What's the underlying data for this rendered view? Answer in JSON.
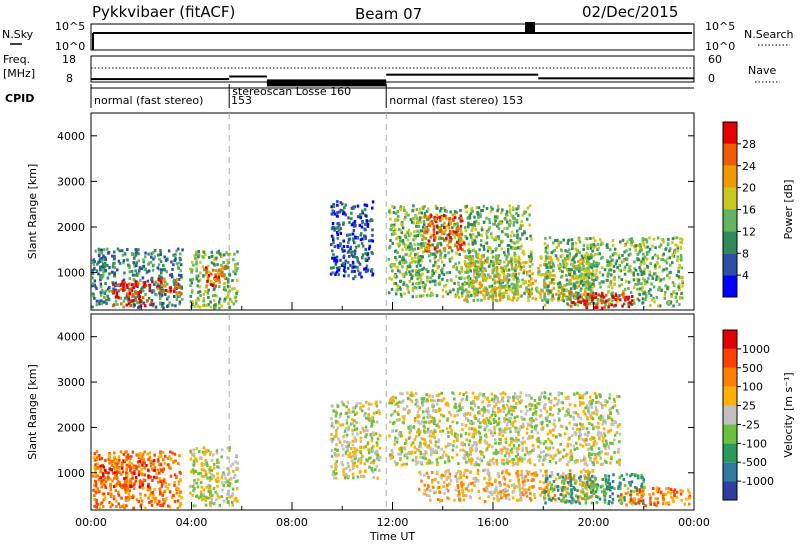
{
  "header": {
    "station": "Pykkvibaer (fitACF)",
    "beam": "Beam 07",
    "date": "02/Dec/2015"
  },
  "left_labels": {
    "nsky": "N.Sky",
    "nsky_top": "10^5",
    "nsky_bottom": "10^0",
    "freq": "Freq.",
    "freq_unit": "[MHz]",
    "freq_top": "18",
    "freq_bottom": "8",
    "cpid": "CPID"
  },
  "right_labels": {
    "nsearch": "N.Search",
    "nsearch_top": "10^5",
    "nsearch_bottom": "10^0",
    "nave": "Nave",
    "nave_top": "60",
    "nave_bottom": "0"
  },
  "cpid_segments": [
    {
      "label": "normal (fast stereo)",
      "id": "153",
      "start_hour": 0,
      "end_hour": 5.5
    },
    {
      "label": "stereoscan Losse 160",
      "id": "",
      "start_hour": 5.5,
      "end_hour": 11.75
    },
    {
      "label": "normal (fast stereo) 153",
      "id": "",
      "start_hour": 11.75,
      "end_hour": 24
    }
  ],
  "frequency_segments": [
    {
      "start_hour": 0,
      "end_hour": 5.5,
      "freq_mhz": 9.5
    },
    {
      "start_hour": 5.5,
      "end_hour": 7.0,
      "freq_mhz": 10.5
    },
    {
      "start_hour": 7.0,
      "end_hour": 11.75,
      "freq_mhz": 9.0
    },
    {
      "start_hour": 11.75,
      "end_hour": 17.8,
      "freq_mhz": 11.2
    },
    {
      "start_hour": 17.8,
      "end_hour": 24,
      "freq_mhz": 9.8
    }
  ],
  "chart_data": [
    {
      "type": "heatmap",
      "name": "power",
      "ylabel": "Slant Range [km]",
      "xlim_hours": [
        0,
        24
      ],
      "ylim": [
        180,
        4500
      ],
      "y_ticks": [
        1000,
        2000,
        3000,
        4000
      ],
      "colorbar_label": "Power [dB]",
      "colorbar_ticks": [
        "4",
        "8",
        "12",
        "16",
        "20",
        "24",
        "28"
      ],
      "colorbar_colors": [
        "#0000ff",
        "#2c4fa6",
        "#2f8a58",
        "#62b560",
        "#c8c820",
        "#ef9a00",
        "#ee5c00",
        "#e60000"
      ],
      "regions": [
        {
          "t0": 0.0,
          "t1": 3.6,
          "r0": 250,
          "r1": 1550,
          "level": 2
        },
        {
          "t0": 0.8,
          "t1": 2.4,
          "r0": 300,
          "r1": 850,
          "level": 7
        },
        {
          "t0": 2.6,
          "t1": 3.6,
          "r0": 550,
          "r1": 900,
          "level": 6
        },
        {
          "t0": 3.9,
          "t1": 5.8,
          "r0": 250,
          "r1": 1500,
          "level": 3
        },
        {
          "t0": 4.5,
          "t1": 5.3,
          "r0": 700,
          "r1": 1200,
          "level": 6
        },
        {
          "t0": 9.5,
          "t1": 11.2,
          "r0": 900,
          "r1": 2600,
          "level": 1
        },
        {
          "t0": 11.8,
          "t1": 17.5,
          "r0": 500,
          "r1": 2500,
          "level": 3
        },
        {
          "t0": 13.2,
          "t1": 14.8,
          "r0": 1500,
          "r1": 2300,
          "level": 6
        },
        {
          "t0": 14.5,
          "t1": 20.0,
          "r0": 400,
          "r1": 1400,
          "level": 4
        },
        {
          "t0": 18.0,
          "t1": 23.5,
          "r0": 300,
          "r1": 1800,
          "level": 3
        },
        {
          "t0": 19.0,
          "t1": 21.5,
          "r0": 250,
          "r1": 600,
          "level": 7
        }
      ]
    },
    {
      "type": "heatmap",
      "name": "velocity",
      "ylabel": "Slant Range [km]",
      "xlabel": "Time UT",
      "xlim_hours": [
        0,
        24
      ],
      "ylim": [
        180,
        4500
      ],
      "y_ticks": [
        1000,
        2000,
        3000,
        4000
      ],
      "x_ticks": [
        "00:00",
        "04:00",
        "08:00",
        "12:00",
        "16:00",
        "20:00",
        "00:00"
      ],
      "colorbar_label": "Velocity [m s⁻¹]",
      "colorbar_ticks": [
        "1000",
        "500",
        "100",
        "25",
        "-25",
        "-100",
        "-500",
        "-1000"
      ],
      "colorbar_colors": [
        "#2c3fa0",
        "#2f7a9f",
        "#2a9a5a",
        "#6cc040",
        "#c0c0c0",
        "#ffb000",
        "#ff8000",
        "#ff4000",
        "#e00000"
      ],
      "regions": [
        {
          "t0": 0.0,
          "t1": 3.6,
          "r0": 250,
          "r1": 1500,
          "level": 6
        },
        {
          "t0": 0.3,
          "t1": 2.5,
          "r0": 700,
          "r1": 1300,
          "level": 7
        },
        {
          "t0": 3.9,
          "t1": 5.8,
          "r0": 300,
          "r1": 1600,
          "level": 4
        },
        {
          "t0": 9.5,
          "t1": 11.5,
          "r0": 900,
          "r1": 2600,
          "level": 4
        },
        {
          "t0": 11.8,
          "t1": 21.0,
          "r0": 1200,
          "r1": 2800,
          "level": 4
        },
        {
          "t0": 13.0,
          "t1": 20.0,
          "r0": 400,
          "r1": 1100,
          "level": 5
        },
        {
          "t0": 18.0,
          "t1": 22.0,
          "r0": 350,
          "r1": 1000,
          "level": 2
        },
        {
          "t0": 21.0,
          "t1": 23.8,
          "r0": 300,
          "r1": 700,
          "level": 6
        }
      ]
    }
  ]
}
